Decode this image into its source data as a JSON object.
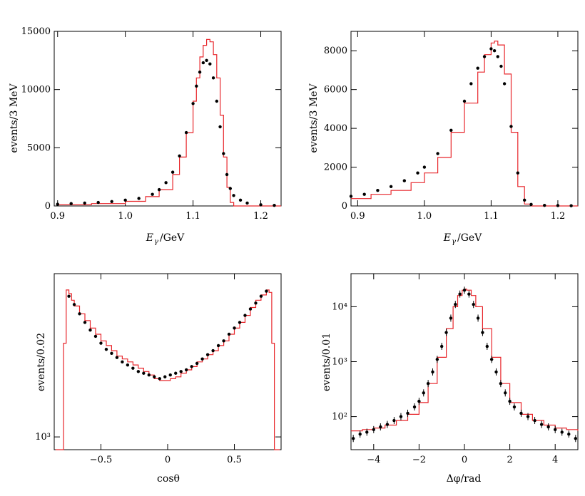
{
  "chart_data": [
    {
      "id": "egamma_1",
      "type": "histogram-with-points",
      "xlabel_main": "E",
      "xlabel_sub": "γ",
      "xlabel_unit": "/GeV",
      "ylabel": "events/3 MeV",
      "xlim": [
        0.895,
        1.23
      ],
      "ylim": [
        0,
        15000
      ],
      "yscale": "linear",
      "xticks": [
        0.9,
        1.0,
        1.1,
        1.2
      ],
      "xtick_labels": [
        "0.9",
        "1.0",
        "1.1",
        "1.2"
      ],
      "yticks": [
        0,
        5000,
        10000,
        15000
      ],
      "ytick_labels": [
        "0",
        "5000",
        "10000",
        "15000"
      ],
      "hist_color": "#e8262b",
      "points_color": "#000000",
      "hist": {
        "x": [
          0.9,
          0.95,
          1.0,
          1.03,
          1.05,
          1.07,
          1.08,
          1.09,
          1.1,
          1.105,
          1.11,
          1.115,
          1.12,
          1.125,
          1.13,
          1.135,
          1.14,
          1.145,
          1.15,
          1.155,
          1.16,
          1.18,
          1.23
        ],
        "y": [
          100,
          200,
          400,
          800,
          1400,
          2700,
          4200,
          6300,
          9000,
          11000,
          12800,
          13800,
          14300,
          14100,
          13000,
          11000,
          7800,
          4200,
          1600,
          300,
          0,
          0,
          0
        ]
      },
      "points": {
        "x": [
          0.9,
          0.92,
          0.94,
          0.96,
          0.98,
          1.0,
          1.02,
          1.04,
          1.05,
          1.06,
          1.07,
          1.08,
          1.09,
          1.1,
          1.105,
          1.11,
          1.115,
          1.12,
          1.125,
          1.13,
          1.135,
          1.14,
          1.145,
          1.15,
          1.155,
          1.16,
          1.17,
          1.18,
          1.2,
          1.22
        ],
        "y": [
          150,
          200,
          250,
          300,
          380,
          500,
          650,
          1000,
          1400,
          2000,
          2900,
          4300,
          6300,
          8800,
          10300,
          11500,
          12300,
          12500,
          12200,
          11000,
          9000,
          6800,
          4500,
          2700,
          1500,
          900,
          500,
          250,
          100,
          50
        ]
      }
    },
    {
      "id": "egamma_2",
      "type": "histogram-with-points",
      "xlabel_main": "E",
      "xlabel_sub": "γ",
      "xlabel_unit": "/GeV",
      "ylabel": "events/3 MeV",
      "xlim": [
        0.89,
        1.23
      ],
      "ylim": [
        0,
        9000
      ],
      "yscale": "linear",
      "xticks": [
        0.9,
        1.0,
        1.1,
        1.2
      ],
      "xtick_labels": [
        "0.9",
        "1.0",
        "1.1",
        "1.2"
      ],
      "yticks": [
        0,
        2000,
        4000,
        6000,
        8000
      ],
      "ytick_labels": [
        "0",
        "2000",
        "4000",
        "6000",
        "8000"
      ],
      "hist_color": "#e8262b",
      "points_color": "#000000",
      "hist": {
        "x": [
          0.89,
          0.92,
          0.95,
          0.98,
          1.0,
          1.02,
          1.04,
          1.06,
          1.08,
          1.09,
          1.1,
          1.105,
          1.11,
          1.12,
          1.13,
          1.14,
          1.15,
          1.16,
          1.23
        ],
        "y": [
          380,
          600,
          800,
          1200,
          1700,
          2500,
          3800,
          5300,
          6900,
          7800,
          8400,
          8500,
          8300,
          6800,
          3800,
          1000,
          100,
          0,
          0
        ]
      },
      "points": {
        "x": [
          0.89,
          0.91,
          0.93,
          0.95,
          0.97,
          0.99,
          1.0,
          1.02,
          1.04,
          1.06,
          1.07,
          1.08,
          1.09,
          1.1,
          1.105,
          1.11,
          1.115,
          1.12,
          1.13,
          1.14,
          1.15,
          1.16,
          1.18,
          1.2,
          1.22
        ],
        "y": [
          500,
          600,
          800,
          1000,
          1300,
          1700,
          2000,
          2700,
          3900,
          5400,
          6300,
          7100,
          7700,
          8100,
          8000,
          7700,
          7200,
          6300,
          4100,
          1700,
          300,
          80,
          30,
          20,
          10
        ]
      }
    },
    {
      "id": "costheta",
      "type": "histogram-with-points",
      "xlabel": "cosθ",
      "ylabel": "events/0.02",
      "xlim": [
        -0.85,
        0.85
      ],
      "ylim_log": [
        850,
        8000
      ],
      "yscale": "log",
      "xticks": [
        -0.5,
        0,
        0.5
      ],
      "xtick_labels": [
        "−0.5",
        "0",
        "0.5"
      ],
      "yticks": [
        1000
      ],
      "ytick_labels": [
        "10³"
      ],
      "hist_color": "#e8262b",
      "points_color": "#000000",
      "hist": {
        "x": [
          -0.84,
          -0.8,
          -0.78,
          -0.76,
          -0.74,
          -0.72,
          -0.7,
          -0.66,
          -0.62,
          -0.58,
          -0.54,
          -0.5,
          -0.46,
          -0.42,
          -0.38,
          -0.34,
          -0.3,
          -0.26,
          -0.22,
          -0.18,
          -0.14,
          -0.1,
          -0.06,
          -0.02,
          0.02,
          0.06,
          0.1,
          0.14,
          0.18,
          0.22,
          0.26,
          0.3,
          0.34,
          0.38,
          0.42,
          0.46,
          0.5,
          0.54,
          0.58,
          0.62,
          0.66,
          0.7,
          0.74,
          0.76,
          0.78,
          0.8,
          0.84
        ],
        "y": [
          10,
          10,
          3300,
          6500,
          6200,
          5700,
          5300,
          4800,
          4400,
          4000,
          3700,
          3400,
          3200,
          3000,
          2800,
          2700,
          2600,
          2500,
          2400,
          2300,
          2200,
          2100,
          2050,
          2050,
          2100,
          2150,
          2250,
          2350,
          2450,
          2600,
          2700,
          2850,
          3000,
          3200,
          3400,
          3700,
          4000,
          4300,
          4700,
          5200,
          5700,
          6100,
          6500,
          6300,
          3300,
          10,
          10
        ]
      },
      "points": {
        "x": [
          -0.74,
          -0.7,
          -0.66,
          -0.62,
          -0.58,
          -0.54,
          -0.5,
          -0.46,
          -0.42,
          -0.38,
          -0.34,
          -0.3,
          -0.26,
          -0.22,
          -0.18,
          -0.14,
          -0.1,
          -0.06,
          -0.02,
          0.02,
          0.06,
          0.1,
          0.14,
          0.18,
          0.22,
          0.26,
          0.3,
          0.34,
          0.38,
          0.42,
          0.46,
          0.5,
          0.54,
          0.58,
          0.62,
          0.66,
          0.7,
          0.74
        ],
        "y": [
          6000,
          5400,
          4800,
          4300,
          3900,
          3600,
          3300,
          3050,
          2900,
          2750,
          2600,
          2500,
          2400,
          2300,
          2250,
          2200,
          2150,
          2100,
          2150,
          2200,
          2250,
          2300,
          2350,
          2450,
          2550,
          2700,
          2850,
          3000,
          3200,
          3400,
          3700,
          4000,
          4300,
          4700,
          5100,
          5500,
          6000,
          6400
        ]
      }
    },
    {
      "id": "deltaphi",
      "type": "histogram-with-points",
      "xlabel": "Δφ/rad",
      "ylabel": "events/0.01",
      "xlim": [
        -5,
        5
      ],
      "ylim_log": [
        25,
        40000
      ],
      "yscale": "log",
      "xticks": [
        -4,
        -2,
        0,
        2,
        4
      ],
      "xtick_labels": [
        "−4",
        "−2",
        "0",
        "2",
        "4"
      ],
      "yticks": [
        100,
        1000,
        10000
      ],
      "ytick_labels": [
        "10²",
        "10³",
        "10⁴"
      ],
      "hist_color": "#e8262b",
      "points_color": "#000000",
      "hist": {
        "x": [
          -5,
          -4.5,
          -4,
          -3.5,
          -3,
          -2.5,
          -2,
          -1.6,
          -1.2,
          -0.8,
          -0.5,
          -0.3,
          -0.1,
          0,
          0.1,
          0.3,
          0.5,
          0.8,
          1.2,
          1.6,
          2,
          2.5,
          3,
          3.5,
          4,
          4.5,
          5
        ],
        "y": [
          55,
          58,
          62,
          70,
          85,
          110,
          180,
          400,
          1200,
          4000,
          10000,
          16000,
          20000,
          21000,
          20000,
          16000,
          10000,
          4000,
          1200,
          400,
          180,
          110,
          85,
          70,
          62,
          58,
          55
        ]
      },
      "points": {
        "x": [
          -4.9,
          -4.6,
          -4.3,
          -4.0,
          -3.7,
          -3.4,
          -3.1,
          -2.8,
          -2.5,
          -2.2,
          -2.0,
          -1.8,
          -1.6,
          -1.4,
          -1.2,
          -1.0,
          -0.8,
          -0.6,
          -0.4,
          -0.2,
          0,
          0.2,
          0.4,
          0.6,
          0.8,
          1.0,
          1.2,
          1.4,
          1.6,
          1.8,
          2.0,
          2.2,
          2.5,
          2.8,
          3.1,
          3.4,
          3.7,
          4.0,
          4.3,
          4.6,
          4.9
        ],
        "y": [
          40,
          48,
          52,
          58,
          65,
          72,
          85,
          100,
          115,
          150,
          190,
          270,
          400,
          650,
          1100,
          1900,
          3400,
          6200,
          11000,
          17000,
          20000,
          17000,
          11000,
          6200,
          3400,
          1900,
          1100,
          650,
          400,
          270,
          190,
          150,
          115,
          100,
          85,
          72,
          65,
          58,
          52,
          48,
          40
        ]
      }
    }
  ]
}
